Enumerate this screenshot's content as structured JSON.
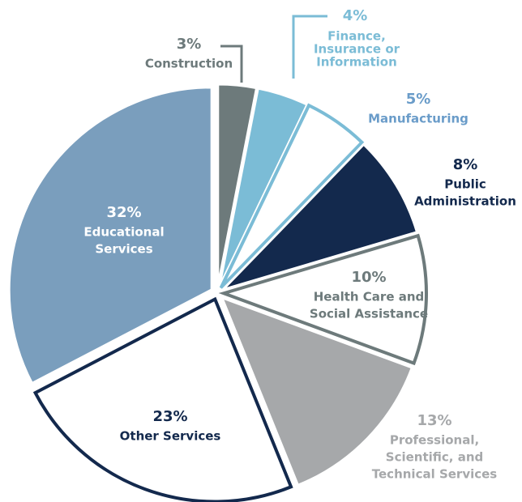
{
  "chart_data": {
    "type": "pie",
    "categories": [
      [
        "Construction"
      ],
      [
        "Finance,",
        "Insurance or",
        "Information"
      ],
      [
        "Manufacturing"
      ],
      [
        "Public",
        "Administration"
      ],
      [
        "Health Care and",
        "Social Assistance"
      ],
      [
        "Professional,",
        "Scientific, and",
        "Technical Services"
      ],
      [
        "Other Services"
      ],
      [
        "Educational",
        "Services"
      ]
    ],
    "values": [
      3,
      4,
      5,
      8,
      10,
      13,
      23,
      32
    ],
    "value_labels": [
      "3%",
      "4%",
      "5%",
      "8%",
      "10%",
      "13%",
      "23%",
      "32%"
    ],
    "colors": [
      "#6d7a7b",
      "#7bbcd6",
      "#ffffff",
      "#13294d",
      "#ffffff",
      "#a6a8aa",
      "#ffffff",
      "#7a9ebd"
    ],
    "edge_colors": [
      "#6d7a7b",
      "#7bbcd6",
      "#7bbcd6",
      "#13294d",
      "#6d7a7b",
      "#a6a8aa",
      "#13294d",
      "#7a9ebd"
    ]
  }
}
